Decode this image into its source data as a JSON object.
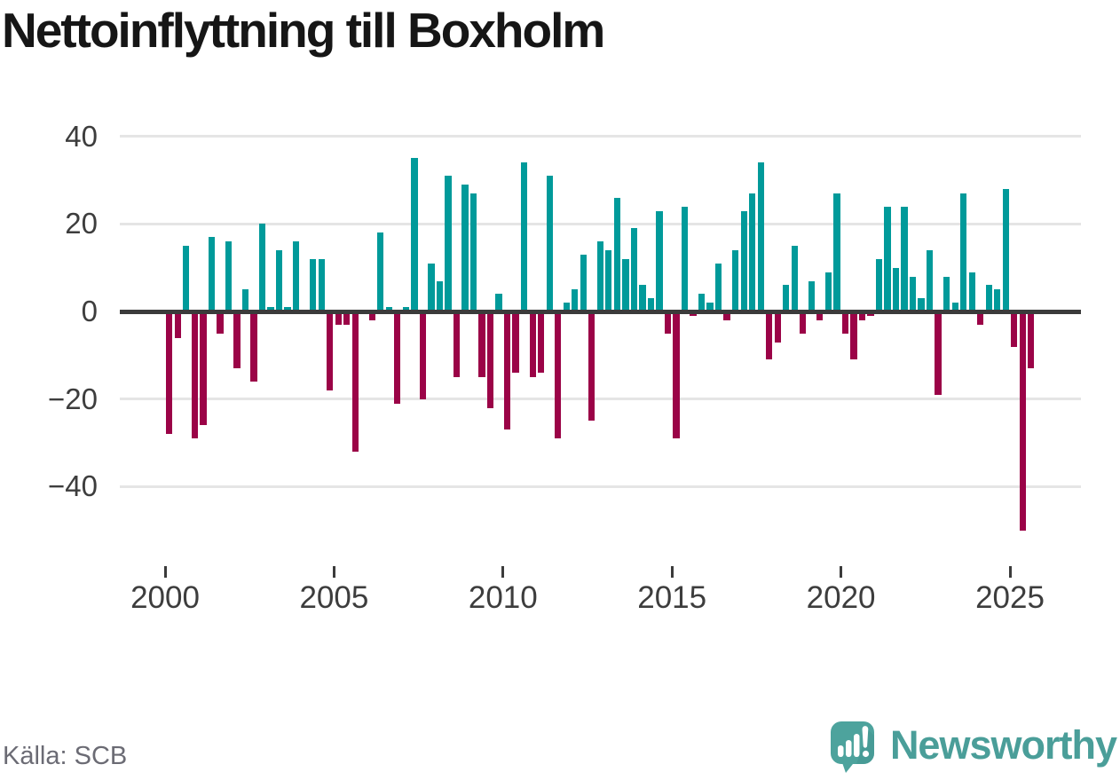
{
  "title": "Nettoinflyttning till Boxholm",
  "source": "Källa: SCB",
  "branding": {
    "logo_text": "Newsworthy",
    "logo_icon": "newsworthy-speech-bubble-chart-icon",
    "brand_color": "#4a9e99",
    "icon_color": "#4da39d"
  },
  "colors": {
    "positive_bar": "#009a9a",
    "negative_bar": "#9b0347",
    "zero_line": "#3b3b3b",
    "gridline": "#e5e5e5",
    "axis_text": "#3d3d3d",
    "title_text": "#161616",
    "source_text": "#6b6b74"
  },
  "chart_data": {
    "type": "bar",
    "title": "Nettoinflyttning till Boxholm",
    "frequency": "quarterly",
    "xlabel": "",
    "ylabel": "",
    "x_tick_labels": [
      "2000",
      "2005",
      "2010",
      "2015",
      "2020",
      "2025"
    ],
    "y_ticks": [
      40,
      20,
      0,
      -20,
      -40
    ],
    "y_tick_labels": [
      "40",
      "20",
      "0",
      "−20",
      "−40"
    ],
    "ylim": [
      -52,
      42
    ],
    "grid": true,
    "legend": false,
    "years": [
      {
        "year": 2000,
        "values": [
          -28,
          -6,
          15,
          -29
        ]
      },
      {
        "year": 2001,
        "values": [
          -26,
          17,
          -5,
          16
        ]
      },
      {
        "year": 2002,
        "values": [
          -13,
          5,
          -16,
          20
        ]
      },
      {
        "year": 2003,
        "values": [
          1,
          14,
          1,
          16
        ]
      },
      {
        "year": 2004,
        "values": [
          0,
          12,
          12,
          -18
        ]
      },
      {
        "year": 2005,
        "values": [
          -3,
          -3,
          -32,
          0
        ]
      },
      {
        "year": 2006,
        "values": [
          -2,
          18,
          1,
          -21
        ]
      },
      {
        "year": 2007,
        "values": [
          1,
          35,
          -20,
          11
        ]
      },
      {
        "year": 2008,
        "values": [
          7,
          31,
          -15,
          29
        ]
      },
      {
        "year": 2009,
        "values": [
          27,
          -15,
          -22,
          4
        ]
      },
      {
        "year": 2010,
        "values": [
          -27,
          -14,
          34,
          -15
        ]
      },
      {
        "year": 2011,
        "values": [
          -14,
          31,
          -29,
          2
        ]
      },
      {
        "year": 2012,
        "values": [
          5,
          13,
          -25,
          16
        ]
      },
      {
        "year": 2013,
        "values": [
          14,
          26,
          12,
          19
        ]
      },
      {
        "year": 2014,
        "values": [
          6,
          3,
          23,
          -5
        ]
      },
      {
        "year": 2015,
        "values": [
          -29,
          24,
          -1,
          4
        ]
      },
      {
        "year": 2016,
        "values": [
          2,
          11,
          -2,
          14
        ]
      },
      {
        "year": 2017,
        "values": [
          23,
          27,
          34,
          -11
        ]
      },
      {
        "year": 2018,
        "values": [
          -7,
          6,
          15,
          -5
        ]
      },
      {
        "year": 2019,
        "values": [
          7,
          -2,
          9,
          27
        ]
      },
      {
        "year": 2020,
        "values": [
          -5,
          -11,
          -2,
          -1
        ]
      },
      {
        "year": 2021,
        "values": [
          12,
          24,
          10,
          24
        ]
      },
      {
        "year": 2022,
        "values": [
          8,
          3,
          14,
          -19
        ]
      },
      {
        "year": 2023,
        "values": [
          8,
          2,
          27,
          9
        ]
      },
      {
        "year": 2024,
        "values": [
          -3,
          6,
          5,
          28
        ]
      },
      {
        "year": 2025,
        "values": [
          -8,
          -50,
          -13
        ]
      }
    ]
  }
}
